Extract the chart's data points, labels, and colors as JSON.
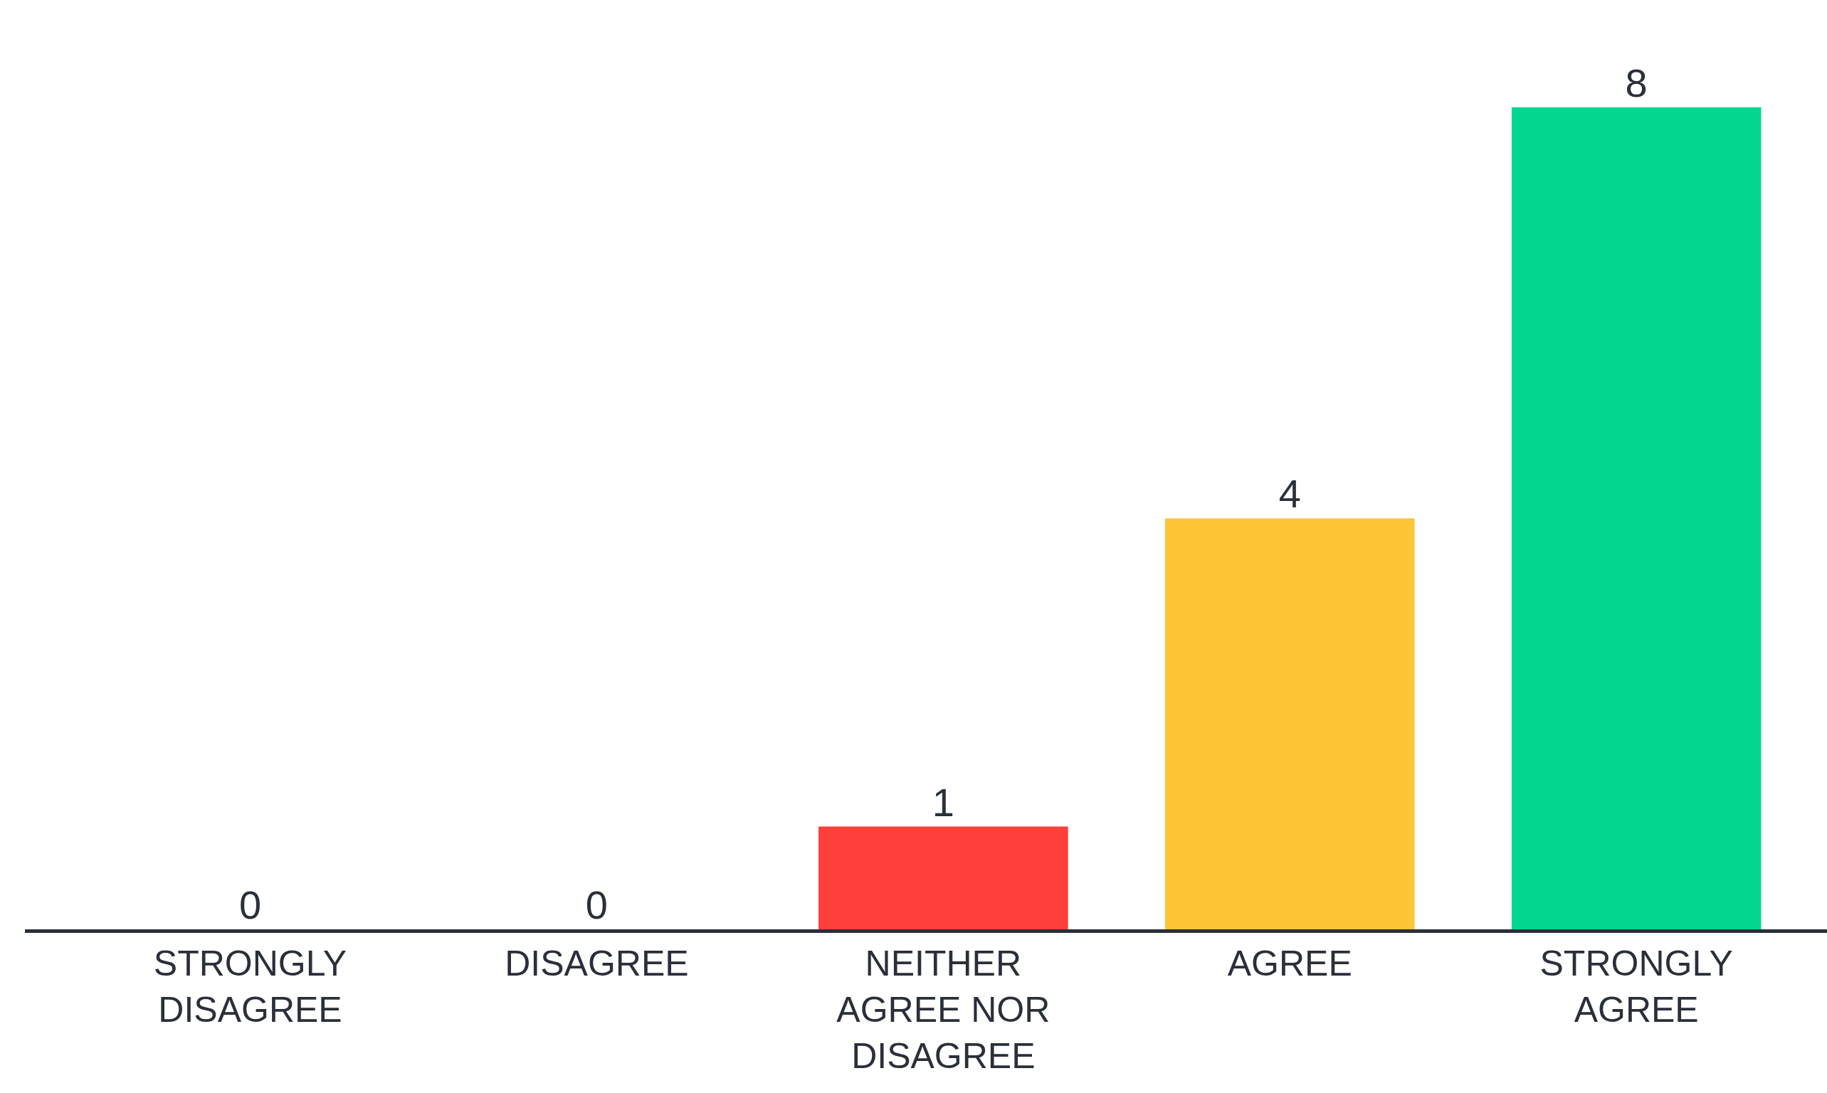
{
  "chart_data": {
    "type": "bar",
    "categories": [
      "STRONGLY DISAGREE",
      "DISAGREE",
      "NEITHER AGREE NOR DISAGREE",
      "AGREE",
      "STRONGLY AGREE"
    ],
    "values": [
      0,
      0,
      1,
      4,
      8
    ],
    "colors": [
      "#ff3f3a",
      "#ff3f3a",
      "#ff3f3a",
      "#fdc435",
      "#02d78f"
    ],
    "data_labels": true
  }
}
